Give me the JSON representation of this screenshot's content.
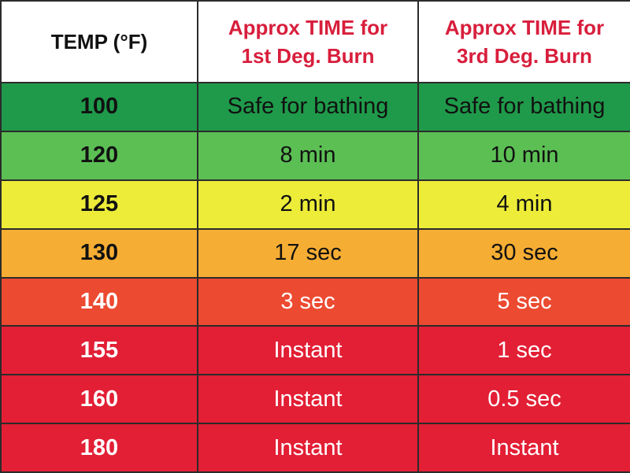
{
  "table": {
    "headers": {
      "temp": "TEMP (°F)",
      "first_degree": [
        "Approx TIME for",
        "1st Deg. Burn"
      ],
      "third_degree": [
        "Approx TIME for",
        "3rd Deg. Burn"
      ]
    },
    "rows": [
      {
        "temp": "100",
        "first": "Safe for bathing",
        "third": "Safe for bathing",
        "bg": "#1f9a4a",
        "color": "#111111"
      },
      {
        "temp": "120",
        "first": "8 min",
        "third": "10 min",
        "bg": "#5cbf54",
        "color": "#111111"
      },
      {
        "temp": "125",
        "first": "2 min",
        "third": "4 min",
        "bg": "#ecec39",
        "color": "#111111"
      },
      {
        "temp": "130",
        "first": "17 sec",
        "third": "30 sec",
        "bg": "#f6ad33",
        "color": "#111111"
      },
      {
        "temp": "140",
        "first": "3 sec",
        "third": "5 sec",
        "bg": "#ec4a31",
        "color": "#ffffff"
      },
      {
        "temp": "155",
        "first": "Instant",
        "third": "1 sec",
        "bg": "#e21f35",
        "color": "#ffffff"
      },
      {
        "temp": "160",
        "first": "Instant",
        "third": "0.5 sec",
        "bg": "#e21f35",
        "color": "#ffffff"
      },
      {
        "temp": "180",
        "first": "Instant",
        "third": "Instant",
        "bg": "#e21f35",
        "color": "#ffffff"
      }
    ]
  },
  "colors": {
    "header_text": "#111111",
    "header_burn_text": "#d81e3c",
    "grid": "#2b2b2b"
  }
}
